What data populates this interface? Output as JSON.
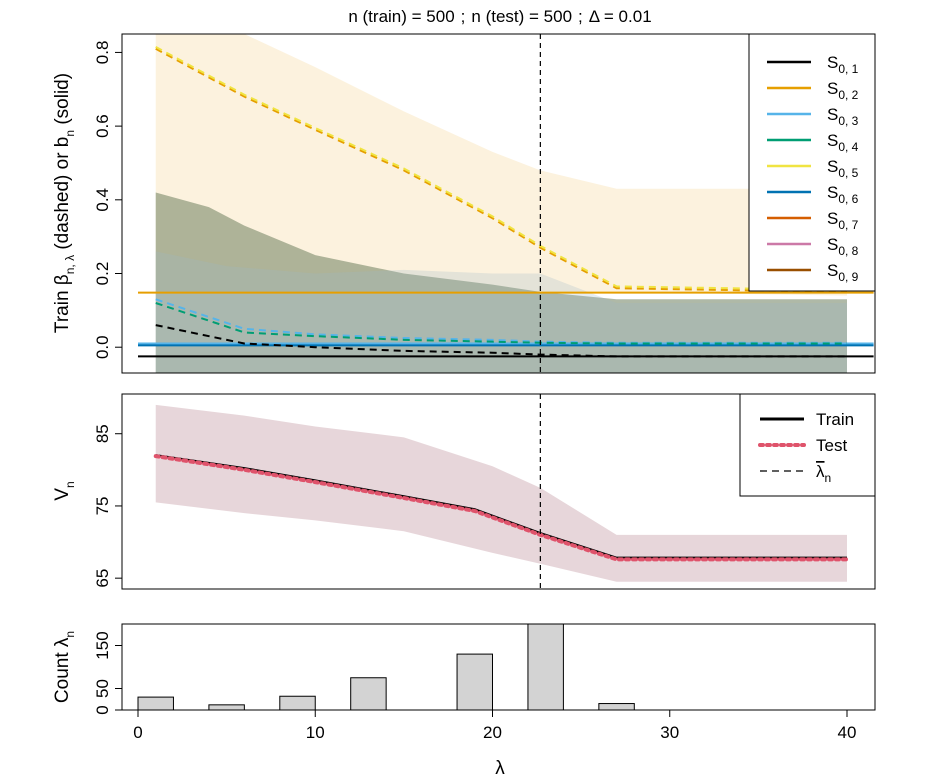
{
  "title": {
    "n_train_label": "n (train) = 500",
    "n_test_label": "n (test) = 500",
    "delta_label": "Δ = 0.01",
    "sep": ";"
  },
  "x_axis": {
    "label": "λ",
    "ticks": [
      0,
      10,
      20,
      30,
      40
    ],
    "range": [
      -1,
      41.5
    ]
  },
  "lambda_bar": 22.7,
  "chart_data": [
    {
      "type": "line",
      "id": "beta",
      "ylabel": "Train β_{n,λ} (dashed) or b_n (solid)",
      "ylabel_parts": {
        "a": "Train β",
        "a_sub": "n, λ",
        "b": " (dashed) or b",
        "b_sub": "n",
        "c": " (solid)"
      },
      "ylim": [
        -0.07,
        0.85
      ],
      "yticks": [
        0.0,
        0.2,
        0.4,
        0.6,
        0.8
      ],
      "yticklabels": [
        "0.0",
        "0.2",
        "0.4",
        "0.6",
        "0.8"
      ],
      "legend": {
        "position": "top-right",
        "entries": [
          {
            "label": "S",
            "sub": "0, 1",
            "color": "#000000"
          },
          {
            "label": "S",
            "sub": "0, 2",
            "color": "#E69F00"
          },
          {
            "label": "S",
            "sub": "0, 3",
            "color": "#56B4E9"
          },
          {
            "label": "S",
            "sub": "0, 4",
            "color": "#009E73"
          },
          {
            "label": "S",
            "sub": "0, 5",
            "color": "#F0E442"
          },
          {
            "label": "S",
            "sub": "0, 6",
            "color": "#0072B2"
          },
          {
            "label": "S",
            "sub": "0, 7",
            "color": "#D55E00"
          },
          {
            "label": "S",
            "sub": "0, 8",
            "color": "#CC79A7"
          },
          {
            "label": "S",
            "sub": "0, 9",
            "color": "#994F00"
          }
        ]
      },
      "bands": [
        {
          "name": "S0,2 band",
          "color": "#F5D9A0",
          "opacity": 0.35,
          "x": [
            1,
            6,
            10,
            15,
            20,
            22.7,
            27,
            40
          ],
          "lower": [
            0.15,
            0.15,
            0.15,
            0.15,
            0.15,
            0.15,
            0.15,
            0.14
          ],
          "upper": [
            0.85,
            0.85,
            0.76,
            0.64,
            0.53,
            0.48,
            0.43,
            0.43
          ]
        },
        {
          "name": "S0,1 band",
          "color": "#6E7F5E",
          "opacity": 0.55,
          "x": [
            1,
            4,
            6,
            10,
            15,
            20,
            22.7,
            27,
            40
          ],
          "lower": [
            -0.07,
            -0.07,
            -0.07,
            -0.07,
            -0.07,
            -0.07,
            -0.07,
            -0.07,
            -0.07
          ],
          "upper": [
            0.42,
            0.38,
            0.33,
            0.25,
            0.2,
            0.17,
            0.15,
            0.13,
            0.13
          ]
        },
        {
          "name": "S0,3 band",
          "color": "#9DB8C6",
          "opacity": 0.25,
          "x": [
            1,
            5,
            10,
            15,
            20,
            22.7,
            27,
            40
          ],
          "lower": [
            -0.07,
            -0.07,
            -0.07,
            -0.07,
            -0.07,
            -0.07,
            -0.07,
            -0.07
          ],
          "upper": [
            0.26,
            0.22,
            0.2,
            0.21,
            0.2,
            0.2,
            0.12,
            0.12
          ]
        }
      ],
      "series": [
        {
          "name": "S0,1 b_n",
          "style": "solid",
          "color": "#000000",
          "x": [
            0,
            41.5
          ],
          "y": [
            -0.025,
            -0.025
          ]
        },
        {
          "name": "S0,2 b_n",
          "style": "solid",
          "color": "#E69F00",
          "x": [
            0,
            41.5
          ],
          "y": [
            0.148,
            0.148
          ]
        },
        {
          "name": "S0,3 b_n",
          "style": "solid",
          "color": "#56B4E9",
          "x": [
            0,
            41.5
          ],
          "y": [
            0.01,
            0.01
          ]
        },
        {
          "name": "S0,6 b_n",
          "style": "solid",
          "color": "#0072B2",
          "x": [
            0,
            41.5
          ],
          "y": [
            0.005,
            0.005
          ]
        },
        {
          "name": "S0,2 beta",
          "style": "dashed",
          "color": "#E69F00",
          "x": [
            1,
            6,
            10,
            15,
            20,
            22.7,
            27,
            40
          ],
          "y": [
            0.81,
            0.68,
            0.59,
            0.48,
            0.35,
            0.27,
            0.16,
            0.15
          ]
        },
        {
          "name": "S0,5 beta",
          "style": "dashed",
          "color": "#F0E442",
          "x": [
            1,
            6,
            10,
            15,
            20,
            22.7,
            27,
            40
          ],
          "y": [
            0.815,
            0.685,
            0.595,
            0.485,
            0.355,
            0.275,
            0.165,
            0.155
          ]
        },
        {
          "name": "S0,3 beta",
          "style": "dashed",
          "color": "#56B4E9",
          "x": [
            1,
            6,
            10,
            15,
            20,
            22.7,
            27,
            40
          ],
          "y": [
            0.13,
            0.05,
            0.035,
            0.025,
            0.02,
            0.015,
            0.012,
            0.012
          ]
        },
        {
          "name": "S0,4 beta",
          "style": "dashed",
          "color": "#009E73",
          "x": [
            1,
            6,
            10,
            15,
            20,
            22.7,
            27,
            40
          ],
          "y": [
            0.12,
            0.04,
            0.03,
            0.02,
            0.015,
            0.012,
            0.01,
            0.01
          ]
        },
        {
          "name": "S0,1 beta",
          "style": "dashed",
          "color": "#000000",
          "x": [
            1,
            6,
            10,
            15,
            20,
            22.7,
            27,
            40
          ],
          "y": [
            0.06,
            0.01,
            0.0,
            -0.01,
            -0.015,
            -0.02,
            -0.025,
            -0.025
          ]
        }
      ]
    },
    {
      "type": "line",
      "id": "value",
      "ylabel": "V_n",
      "ylabel_parts": {
        "a": "V",
        "a_sub": "n"
      },
      "ylim": [
        63.5,
        90.5
      ],
      "yticks": [
        65,
        75,
        85
      ],
      "yticklabels": [
        "65",
        "75",
        "85"
      ],
      "legend": {
        "position": "top-right",
        "entries": [
          {
            "label": "Train",
            "style": "solid",
            "color": "#000000"
          },
          {
            "label": "Test",
            "style": "dotted",
            "color": "#DF536B"
          },
          {
            "label": "λ",
            "sub": "n",
            "overline": true,
            "style": "dashed",
            "color": "#000000"
          }
        ]
      },
      "bands": [
        {
          "name": "test band",
          "color": "#C9A3AE",
          "opacity": 0.45,
          "x": [
            1,
            6,
            10,
            15,
            20,
            22.7,
            27,
            40
          ],
          "lower": [
            75.5,
            74.0,
            73.0,
            71.5,
            68.5,
            67.0,
            64.5,
            64.5
          ],
          "upper": [
            89.0,
            87.5,
            86.0,
            84.5,
            80.5,
            77.5,
            71.0,
            71.0
          ]
        }
      ],
      "series": [
        {
          "name": "Train",
          "style": "solid",
          "color": "#000000",
          "x": [
            1,
            6,
            10,
            15,
            19,
            22.7,
            27,
            40
          ],
          "y": [
            82.0,
            80.2,
            78.5,
            76.3,
            74.5,
            71.2,
            67.8,
            67.8
          ]
        },
        {
          "name": "Test",
          "style": "dotted",
          "color": "#DF536B",
          "x": [
            1,
            6,
            10,
            15,
            19,
            22.7,
            27,
            40
          ],
          "y": [
            81.9,
            80.0,
            78.3,
            76.1,
            74.3,
            71.0,
            67.6,
            67.6
          ]
        }
      ]
    },
    {
      "type": "bar",
      "id": "count",
      "ylabel": "Count λ_n",
      "ylabel_parts": {
        "a": "Count λ",
        "a_sub": "n"
      },
      "ylim": [
        0,
        200
      ],
      "yticks": [
        0,
        50,
        150
      ],
      "yticklabels": [
        "0",
        "50",
        "150"
      ],
      "bar_color": "#D3D3D3",
      "bar_width": 2,
      "x": [
        1,
        5,
        9,
        13,
        19,
        23,
        27
      ],
      "values": [
        30,
        12,
        32,
        75,
        130,
        200,
        15
      ]
    }
  ]
}
